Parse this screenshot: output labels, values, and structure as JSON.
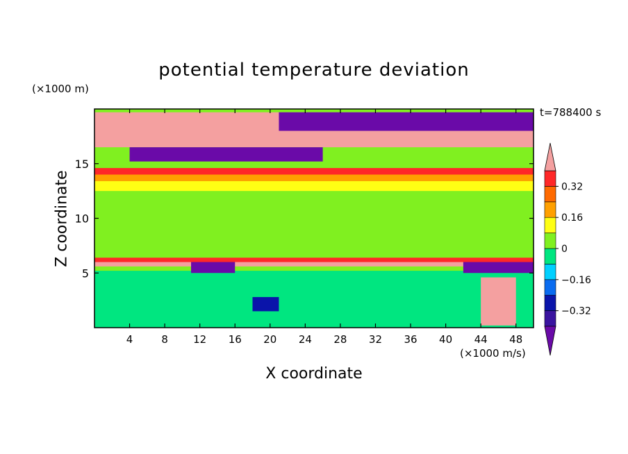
{
  "chart_data": {
    "type": "heatmap",
    "title": "potential temperature deviation",
    "xlabel": "X coordinate",
    "ylabel": "Z coordinate",
    "x_unit": "(×1000 m/s)",
    "y_unit": "(×1000 m)",
    "time_label": "t=788400 s",
    "xlim": [
      0,
      50
    ],
    "ylim": [
      0,
      20
    ],
    "x_ticks": [
      4,
      8,
      12,
      16,
      20,
      24,
      28,
      32,
      36,
      40,
      44,
      48
    ],
    "y_ticks": [
      5,
      10,
      15
    ],
    "colorbar": {
      "levels": [
        -0.48,
        -0.4,
        -0.32,
        -0.24,
        -0.16,
        -0.08,
        0,
        0.08,
        0.16,
        0.24,
        0.32,
        0.4,
        0.48
      ],
      "tick_labels": [
        "0.32",
        "0.16",
        "0",
        "−0.16",
        "−0.32"
      ],
      "tick_values": [
        0.32,
        0.16,
        0,
        -0.16,
        -0.32
      ],
      "colors_low_to_high": [
        "#6a0aa8",
        "#3a14a0",
        "#0a14aa",
        "#0a6cf0",
        "#00d0ff",
        "#00e680",
        "#80f020",
        "#ffff14",
        "#ffa000",
        "#ff6a00",
        "#ff2828",
        "#f4a0a0"
      ],
      "extend": "both"
    },
    "regions": [
      {
        "x": [
          0,
          50
        ],
        "z": [
          0,
          20
        ],
        "value": 0.02
      },
      {
        "x": [
          0,
          50
        ],
        "z": [
          18,
          19.7
        ],
        "value": 0.45
      },
      {
        "x": [
          0,
          50
        ],
        "z": [
          16.5,
          18
        ],
        "value": 0.45
      },
      {
        "x": [
          0,
          50
        ],
        "z": [
          14.0,
          14.6
        ],
        "value": 0.32
      },
      {
        "x": [
          0,
          50
        ],
        "z": [
          13.4,
          14.0
        ],
        "value": 0.2
      },
      {
        "x": [
          0,
          50
        ],
        "z": [
          12.5,
          13.4
        ],
        "value": 0.1
      },
      {
        "x": [
          0,
          50
        ],
        "z": [
          6.0,
          6.4
        ],
        "value": 0.32
      },
      {
        "x": [
          0,
          50
        ],
        "z": [
          5.6,
          6.0
        ],
        "value": 0.45
      },
      {
        "x": [
          0,
          50
        ],
        "z": [
          0,
          5.2
        ],
        "value": -0.06
      },
      {
        "x": [
          21,
          50
        ],
        "z": [
          18.0,
          19.7
        ],
        "value": -0.47
      },
      {
        "x": [
          4,
          26
        ],
        "z": [
          15.2,
          16.5
        ],
        "value": -0.47
      },
      {
        "x": [
          11,
          16
        ],
        "z": [
          5.0,
          6.0
        ],
        "value": -0.47
      },
      {
        "x": [
          42,
          50
        ],
        "z": [
          5.0,
          6.0
        ],
        "value": -0.47
      },
      {
        "x": [
          44,
          48
        ],
        "z": [
          0.2,
          4.6
        ],
        "value": 0.4
      },
      {
        "x": [
          18,
          21
        ],
        "z": [
          1.5,
          2.8
        ],
        "value": -0.3
      }
    ]
  }
}
